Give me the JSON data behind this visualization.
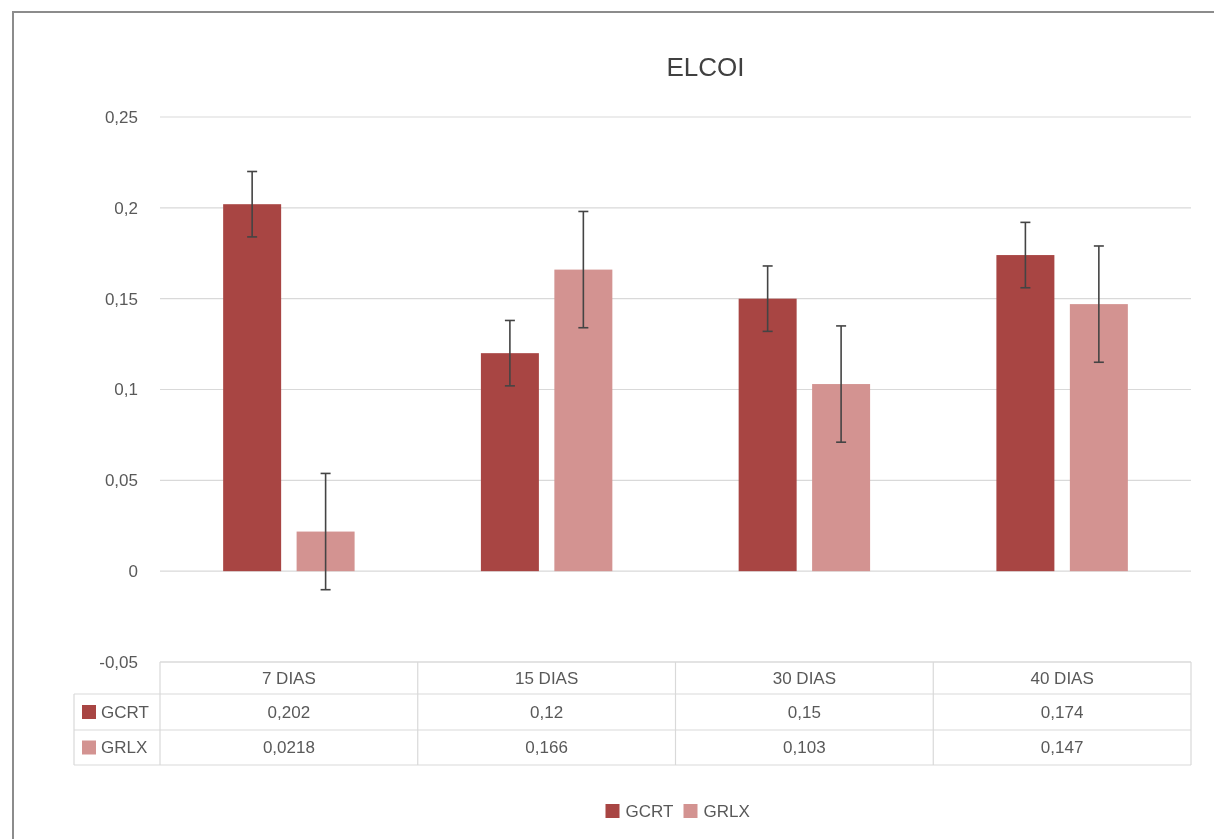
{
  "chart_data": {
    "type": "bar",
    "title": "ELCOI",
    "categories": [
      "7 DIAS",
      "15 DIAS",
      "30 DIAS",
      "40 DIAS"
    ],
    "series": [
      {
        "name": "GCRT",
        "color": "#a84543",
        "values": [
          0.202,
          0.12,
          0.15,
          0.174
        ],
        "value_labels": [
          "0,202",
          "0,12",
          "0,15",
          "0,174"
        ],
        "errors": [
          0.018,
          0.018,
          0.018,
          0.018
        ]
      },
      {
        "name": "GRLX",
        "color": "#d39391",
        "values": [
          0.0218,
          0.166,
          0.103,
          0.147
        ],
        "value_labels": [
          "0,0218",
          "0,166",
          "0,103",
          "0,147"
        ],
        "errors": [
          0.032,
          0.032,
          0.032,
          0.032
        ]
      }
    ],
    "ylim": [
      -0.05,
      0.25
    ],
    "yticks": [
      {
        "value": -0.05,
        "label": "-0,05"
      },
      0,
      {
        "value": 0.05,
        "label": "0,05"
      },
      {
        "value": 0.1,
        "label": "0,1"
      },
      {
        "value": 0.15,
        "label": "0,15"
      },
      {
        "value": 0.2,
        "label": "0,2"
      },
      {
        "value": 0.25,
        "label": "0,25"
      }
    ],
    "grid": "y",
    "legend": "bottom"
  }
}
